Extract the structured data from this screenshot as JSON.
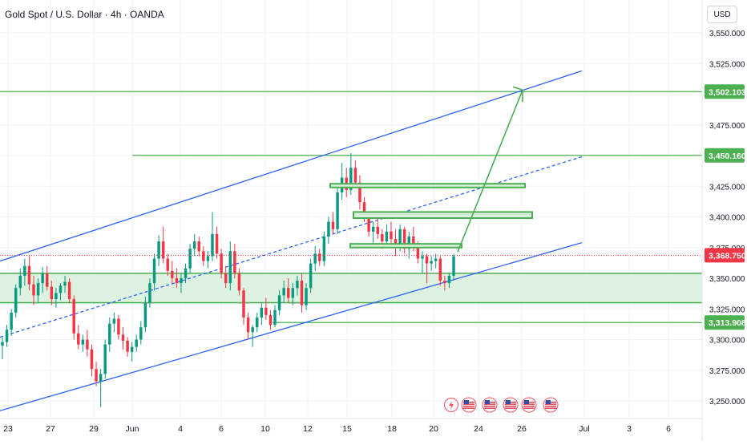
{
  "header": {
    "title": "Gold Spot / U.S. Dollar · 4h · OANDA",
    "currency": "USD"
  },
  "colors": {
    "bull": "#089981",
    "bear": "#f23645",
    "channel": "#2962ff",
    "level": "#4caf50",
    "zone_fill": "#d8f0dc",
    "price_line": "#f23645",
    "grid": "#f0f3fa",
    "axis_text": "#131722"
  },
  "chart_data": {
    "type": "candlestick",
    "title": "Gold Spot / U.S. Dollar · 4h · OANDA",
    "ylim": [
      3240,
      3560
    ],
    "y_ticks": [
      "3,550.000",
      "3,525.000",
      "3,475.000",
      "3,450.000",
      "3,425.000",
      "3,400.000",
      "3,375.000",
      "3,350.000",
      "3,325.000",
      "3,300.000",
      "3,275.000",
      "3,250.000"
    ],
    "x_ticks": [
      "23",
      "27",
      "29",
      "Jun",
      "4",
      "6",
      "10",
      "12",
      "15",
      "18",
      "20",
      "24",
      "26",
      "Jul",
      "3",
      "6"
    ],
    "price_labels": [
      {
        "value": 3502.103,
        "text": "3,502.103",
        "kind": "level"
      },
      {
        "value": 3450.16,
        "text": "3,450.160",
        "kind": "level"
      },
      {
        "value": 3368.75,
        "text": "3,368.750",
        "kind": "current"
      },
      {
        "value": 3313.908,
        "text": "3,313.908",
        "kind": "level"
      }
    ],
    "support_zone": [
      3330,
      3354
    ],
    "horizontal_levels": [
      3502.103,
      3450.16,
      3313.908
    ],
    "resistance_boxes": [
      {
        "from": "13",
        "to": "26",
        "low": 3424,
        "high": 3427
      },
      {
        "from": "15",
        "to": "27",
        "low": 3399,
        "high": 3404
      },
      {
        "from": "15",
        "to": "22",
        "low": 3375,
        "high": 3378
      }
    ],
    "projection": {
      "from": [
        3376,
        "22"
      ],
      "via": [
        3376,
        "22"
      ],
      "to": [
        3502.103,
        "26"
      ]
    },
    "channel": {
      "lower": [
        [
          "22",
          3242
        ],
        [
          "Jul",
          3379
        ]
      ],
      "upper": [
        [
          "22",
          3364
        ],
        [
          "Jul",
          3519
        ]
      ],
      "mid": [
        [
          "22",
          3302
        ],
        [
          "Jul",
          3449
        ]
      ]
    },
    "candles": [
      [
        3295,
        3302,
        3284,
        3298
      ],
      [
        3298,
        3312,
        3294,
        3308
      ],
      [
        3308,
        3325,
        3303,
        3322
      ],
      [
        3322,
        3345,
        3318,
        3342
      ],
      [
        3342,
        3358,
        3336,
        3352
      ],
      [
        3352,
        3366,
        3344,
        3360
      ],
      [
        3360,
        3368,
        3340,
        3345
      ],
      [
        3345,
        3352,
        3328,
        3336
      ],
      [
        3336,
        3350,
        3330,
        3346
      ],
      [
        3346,
        3359,
        3338,
        3354
      ],
      [
        3354,
        3360,
        3340,
        3343
      ],
      [
        3343,
        3348,
        3328,
        3333
      ],
      [
        3333,
        3342,
        3326,
        3338
      ],
      [
        3338,
        3346,
        3332,
        3344
      ],
      [
        3344,
        3352,
        3338,
        3347
      ],
      [
        3347,
        3350,
        3330,
        3333
      ],
      [
        3333,
        3336,
        3300,
        3305
      ],
      [
        3305,
        3312,
        3292,
        3296
      ],
      [
        3296,
        3304,
        3290,
        3300
      ],
      [
        3300,
        3308,
        3286,
        3292
      ],
      [
        3292,
        3296,
        3270,
        3276
      ],
      [
        3276,
        3282,
        3262,
        3266
      ],
      [
        3266,
        3276,
        3245,
        3272
      ],
      [
        3272,
        3300,
        3268,
        3296
      ],
      [
        3296,
        3318,
        3290,
        3313
      ],
      [
        3313,
        3322,
        3306,
        3317
      ],
      [
        3317,
        3320,
        3300,
        3304
      ],
      [
        3304,
        3310,
        3292,
        3299
      ],
      [
        3299,
        3302,
        3286,
        3290
      ],
      [
        3290,
        3298,
        3282,
        3294
      ],
      [
        3294,
        3304,
        3290,
        3300
      ],
      [
        3300,
        3315,
        3296,
        3310
      ],
      [
        3310,
        3335,
        3306,
        3330
      ],
      [
        3330,
        3350,
        3326,
        3346
      ],
      [
        3346,
        3370,
        3340,
        3366
      ],
      [
        3366,
        3385,
        3360,
        3380
      ],
      [
        3380,
        3392,
        3362,
        3366
      ],
      [
        3366,
        3370,
        3352,
        3356
      ],
      [
        3356,
        3364,
        3346,
        3350
      ],
      [
        3350,
        3358,
        3342,
        3346
      ],
      [
        3346,
        3354,
        3338,
        3350
      ],
      [
        3350,
        3362,
        3346,
        3358
      ],
      [
        3358,
        3378,
        3354,
        3374
      ],
      [
        3374,
        3386,
        3368,
        3380
      ],
      [
        3380,
        3384,
        3368,
        3372
      ],
      [
        3372,
        3376,
        3360,
        3364
      ],
      [
        3364,
        3372,
        3358,
        3368
      ],
      [
        3368,
        3404,
        3364,
        3386
      ],
      [
        3386,
        3392,
        3366,
        3370
      ],
      [
        3370,
        3374,
        3350,
        3354
      ],
      [
        3354,
        3360,
        3342,
        3346
      ],
      [
        3346,
        3380,
        3340,
        3372
      ],
      [
        3372,
        3378,
        3350,
        3354
      ],
      [
        3354,
        3358,
        3336,
        3340
      ],
      [
        3340,
        3342,
        3312,
        3318
      ],
      [
        3318,
        3322,
        3300,
        3306
      ],
      [
        3306,
        3312,
        3294,
        3310
      ],
      [
        3310,
        3322,
        3306,
        3318
      ],
      [
        3318,
        3330,
        3312,
        3326
      ],
      [
        3326,
        3334,
        3316,
        3320
      ],
      [
        3320,
        3324,
        3308,
        3312
      ],
      [
        3312,
        3328,
        3310,
        3324
      ],
      [
        3324,
        3340,
        3320,
        3336
      ],
      [
        3336,
        3348,
        3330,
        3342
      ],
      [
        3342,
        3350,
        3330,
        3334
      ],
      [
        3334,
        3346,
        3328,
        3342
      ],
      [
        3342,
        3352,
        3336,
        3348
      ],
      [
        3348,
        3354,
        3322,
        3328
      ],
      [
        3328,
        3346,
        3324,
        3342
      ],
      [
        3342,
        3366,
        3338,
        3362
      ],
      [
        3362,
        3376,
        3356,
        3370
      ],
      [
        3370,
        3374,
        3360,
        3364
      ],
      [
        3364,
        3388,
        3360,
        3384
      ],
      [
        3384,
        3400,
        3378,
        3396
      ],
      [
        3396,
        3404,
        3386,
        3390
      ],
      [
        3390,
        3426,
        3386,
        3420
      ],
      [
        3420,
        3444,
        3414,
        3432
      ],
      [
        3432,
        3440,
        3416,
        3422
      ],
      [
        3422,
        3452,
        3418,
        3440
      ],
      [
        3440,
        3446,
        3424,
        3428
      ],
      [
        3428,
        3434,
        3406,
        3412
      ],
      [
        3412,
        3416,
        3396,
        3400
      ],
      [
        3400,
        3404,
        3384,
        3388
      ],
      [
        3388,
        3396,
        3376,
        3392
      ],
      [
        3392,
        3400,
        3382,
        3386
      ],
      [
        3386,
        3390,
        3374,
        3380
      ],
      [
        3380,
        3394,
        3376,
        3388
      ],
      [
        3388,
        3396,
        3378,
        3382
      ],
      [
        3382,
        3390,
        3368,
        3376
      ],
      [
        3376,
        3394,
        3372,
        3390
      ],
      [
        3390,
        3392,
        3370,
        3374
      ],
      [
        3374,
        3388,
        3366,
        3384
      ],
      [
        3384,
        3392,
        3372,
        3376
      ],
      [
        3376,
        3380,
        3362,
        3366
      ],
      [
        3366,
        3372,
        3354,
        3368
      ],
      [
        3368,
        3370,
        3346,
        3362
      ],
      [
        3362,
        3368,
        3356,
        3364
      ],
      [
        3364,
        3370,
        3358,
        3366
      ],
      [
        3366,
        3368,
        3344,
        3348
      ],
      [
        3348,
        3352,
        3340,
        3346
      ],
      [
        3346,
        3354,
        3342,
        3352
      ],
      [
        3352,
        3370,
        3348,
        3368
      ]
    ],
    "events": [
      "lightning-icon",
      "us-flag-icon",
      "us-flag-icon",
      "us-flag-icon",
      "us-flag-icon",
      "us-flag-icon"
    ]
  }
}
